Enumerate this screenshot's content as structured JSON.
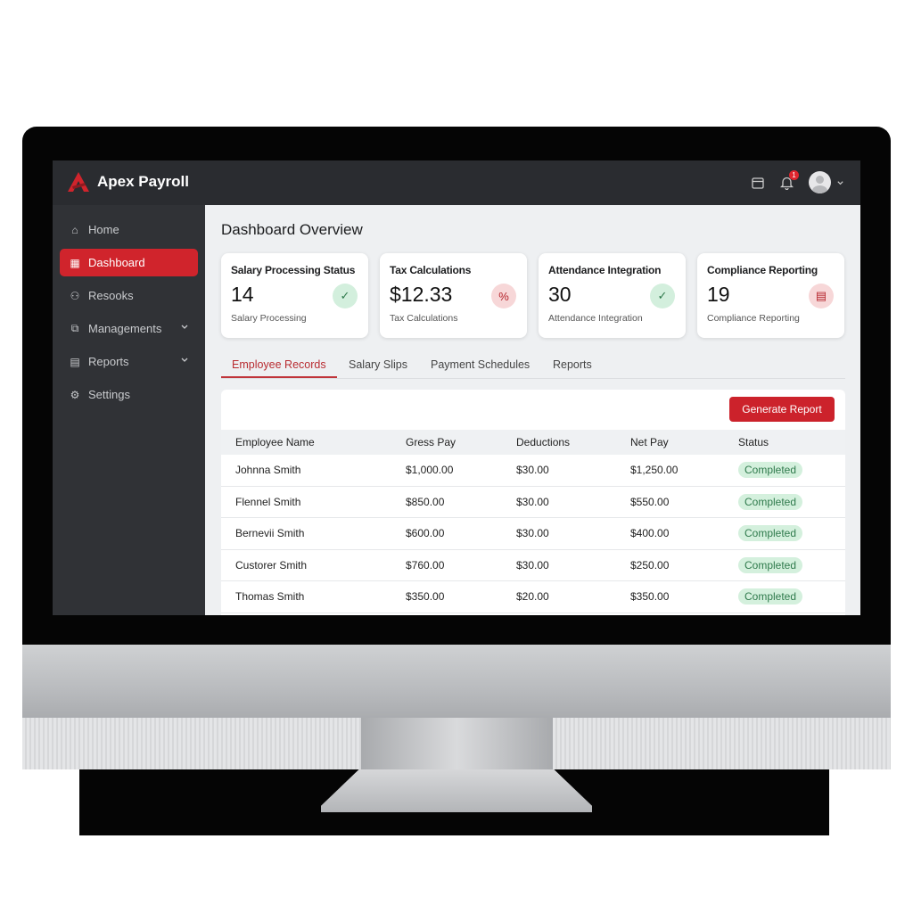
{
  "app": {
    "name": "Apex Payroll",
    "brand_color": "#d0242c"
  },
  "header": {
    "notification_count": "1",
    "icons": [
      "calendar-icon",
      "bell-icon",
      "avatar",
      "chevron-down-icon"
    ]
  },
  "sidebar": {
    "items": [
      {
        "label": "Home",
        "icon": "home-icon"
      },
      {
        "label": "Dashboard",
        "icon": "grid-icon",
        "active": true
      },
      {
        "label": "Resooks",
        "icon": "users-icon"
      },
      {
        "label": "Managements",
        "icon": "briefcase-icon",
        "expandable": true
      },
      {
        "label": "Reports",
        "icon": "report-icon",
        "expandable": true
      },
      {
        "label": "Settings",
        "icon": "gear-icon"
      }
    ]
  },
  "main": {
    "title": "Dashboard Overview",
    "cards": [
      {
        "title": "Salary Processing Status",
        "value": "14",
        "subtitle": "Salary Processing",
        "icon": "check-icon",
        "color": "green"
      },
      {
        "title": "Tax Calculations",
        "value": "$12.33",
        "subtitle": "Tax Calculations",
        "icon": "percent-icon",
        "color": "red"
      },
      {
        "title": "Attendance Integration",
        "value": "30",
        "subtitle": "Attendance Integration",
        "icon": "check-icon",
        "color": "green"
      },
      {
        "title": "Compliance Reporting",
        "value": "19",
        "subtitle": "Compliance Reporting",
        "icon": "document-icon",
        "color": "red"
      }
    ],
    "tabs": [
      {
        "label": "Employee Records",
        "active": true
      },
      {
        "label": "Salary Slips"
      },
      {
        "label": "Payment Schedules"
      },
      {
        "label": "Reports"
      }
    ],
    "generate_label": "Generate Report",
    "table": {
      "columns": [
        "Employee Name",
        "Gress Pay",
        "Deductions",
        "Net Pay",
        "Status"
      ],
      "rows": [
        [
          "Johnna Smith",
          "$1,000.00",
          "$30.00",
          "$1,250.00",
          "Completed"
        ],
        [
          "Flennel Smith",
          "$850.00",
          "$30.00",
          "$550.00",
          "Completed"
        ],
        [
          "Bernevii Smith",
          "$600.00",
          "$30.00",
          "$400.00",
          "Completed"
        ],
        [
          "Custorer Smith",
          "$760.00",
          "$30.00",
          "$250.00",
          "Completed"
        ],
        [
          "Thomas Smith",
          "$350.00",
          "$20.00",
          "$350.00",
          "Completed"
        ]
      ]
    }
  }
}
